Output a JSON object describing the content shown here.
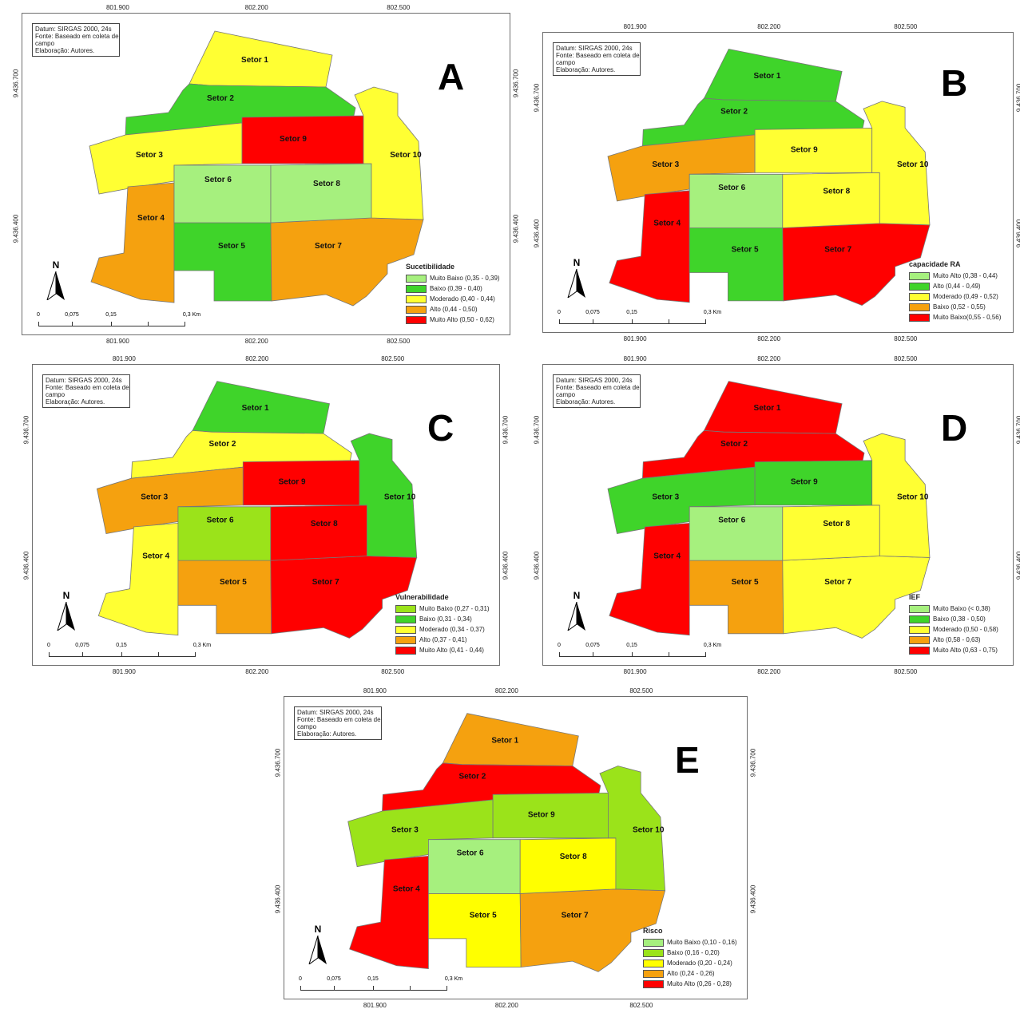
{
  "common": {
    "datum_line1": "Datum: SIRGAS 2000, 24s",
    "datum_line2": "Fonte: Baseado em coleta de",
    "datum_line3": "campo",
    "datum_line4": "Elaboração: Autores.",
    "x_ticks": [
      "801.900",
      "802.200",
      "802.500"
    ],
    "y_ticks": [
      "9.436.700",
      "9.436.400"
    ],
    "north": "N",
    "scale_labels": [
      "0",
      "0,075",
      "0,15",
      "0,3 Km"
    ],
    "sector_labels": [
      "Setor 1",
      "Setor 2",
      "Setor 3",
      "Setor 4",
      "Setor 5",
      "Setor 6",
      "Setor 7",
      "Setor 8",
      "Setor 9",
      "Setor 10"
    ]
  },
  "colors": {
    "very_light_green": "#a6f07e",
    "green": "#3fd42a",
    "yellow_green": "#9be31a",
    "yellow": "#ffff00",
    "yellow_soft": "#ffff33",
    "orange": "#f5a10f",
    "red": "#ff0000"
  },
  "maps": [
    {
      "letter": "A",
      "legend_title": "Sucetibilidade",
      "legend": [
        {
          "label": "Muito Baixo (0,35 - 0,39)",
          "color": "#a6f07e"
        },
        {
          "label": "Baixo (0,39 - 0,40)",
          "color": "#3fd42a"
        },
        {
          "label": "Moderado (0,40 - 0,44)",
          "color": "#ffff33"
        },
        {
          "label": "Alto (0,44 - 0,50)",
          "color": "#f5a10f"
        },
        {
          "label": "Muito Alto (0,50 - 0,62)",
          "color": "#ff0000"
        }
      ],
      "sector_colors": [
        "#ffff33",
        "#3fd42a",
        "#ffff33",
        "#f5a10f",
        "#3fd42a",
        "#a6f07e",
        "#f5a10f",
        "#a6f07e",
        "#ff0000",
        "#ffff33"
      ]
    },
    {
      "letter": "B",
      "legend_title": "capacidade RA",
      "legend": [
        {
          "label": "Muito Alto (0,38 - 0,44)",
          "color": "#a6f07e"
        },
        {
          "label": "Alto (0,44 - 0,49)",
          "color": "#3fd42a"
        },
        {
          "label": "Moderado (0,49 - 0,52)",
          "color": "#ffff33"
        },
        {
          "label": "Baixo (0,52 - 0,55)",
          "color": "#f5a10f"
        },
        {
          "label": "Muito Baixo(0,55 - 0,56)",
          "color": "#ff0000"
        }
      ],
      "sector_colors": [
        "#3fd42a",
        "#3fd42a",
        "#f5a10f",
        "#ff0000",
        "#3fd42a",
        "#a6f07e",
        "#ff0000",
        "#ffff33",
        "#ffff33",
        "#ffff33"
      ]
    },
    {
      "letter": "C",
      "legend_title": "Vulnerabilidade",
      "legend": [
        {
          "label": "Muito Baixo (0,27 - 0,31)",
          "color": "#9be31a"
        },
        {
          "label": "Baixo (0,31 - 0,34)",
          "color": "#3fd42a"
        },
        {
          "label": "Moderado (0,34 - 0,37)",
          "color": "#ffff33"
        },
        {
          "label": "Alto (0,37 - 0,41)",
          "color": "#f5a10f"
        },
        {
          "label": "Muito Alto (0,41 - 0,44)",
          "color": "#ff0000"
        }
      ],
      "sector_colors": [
        "#3fd42a",
        "#ffff33",
        "#f5a10f",
        "#ffff33",
        "#f5a10f",
        "#9be31a",
        "#ff0000",
        "#ff0000",
        "#ff0000",
        "#3fd42a"
      ]
    },
    {
      "letter": "D",
      "legend_title": "IEF",
      "legend": [
        {
          "label": "Muito Baixo (< 0,38)",
          "color": "#a6f07e"
        },
        {
          "label": "Baixo (0,38 - 0,50)",
          "color": "#3fd42a"
        },
        {
          "label": "Moderado (0,50 - 0,58)",
          "color": "#ffff33"
        },
        {
          "label": "Alto (0,58 - 0,63)",
          "color": "#f5a10f"
        },
        {
          "label": "Muito Alto (0,63 - 0,75)",
          "color": "#ff0000"
        }
      ],
      "sector_colors": [
        "#ff0000",
        "#ff0000",
        "#3fd42a",
        "#ff0000",
        "#f5a10f",
        "#a6f07e",
        "#ffff33",
        "#ffff33",
        "#3fd42a",
        "#ffff33"
      ]
    },
    {
      "letter": "E",
      "legend_title": "Risco",
      "legend": [
        {
          "label": "Muito Baixo (0,10 - 0,16)",
          "color": "#a6f07e"
        },
        {
          "label": "Baixo (0,16 - 0,20)",
          "color": "#9be31a"
        },
        {
          "label": "Moderado (0,20 - 0,24)",
          "color": "#ffff00"
        },
        {
          "label": "Alto (0,24 - 0,26)",
          "color": "#f5a10f"
        },
        {
          "label": "Muito Alto (0,26 - 0,28)",
          "color": "#ff0000"
        }
      ],
      "sector_colors": [
        "#f5a10f",
        "#ff0000",
        "#9be31a",
        "#ff0000",
        "#ffff00",
        "#a6f07e",
        "#f5a10f",
        "#ffff00",
        "#9be31a",
        "#9be31a"
      ]
    }
  ]
}
